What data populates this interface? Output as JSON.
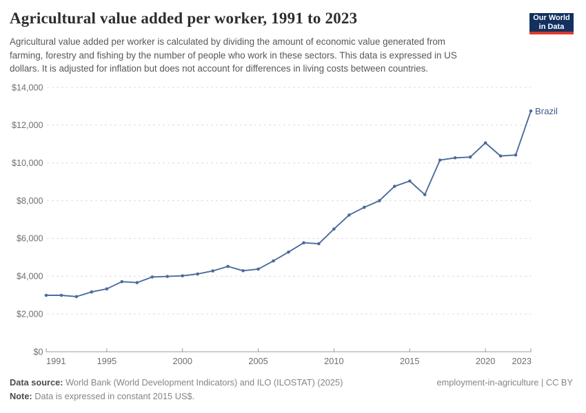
{
  "header": {
    "title": "Agricultural value added per worker, 1991 to 2023",
    "subtitle": "Agricultural value added per worker is calculated by dividing the amount of economic value generated from\nfarming, forestry and fishing by the number of people who work in these sectors. This data is expressed in US\ndollars. It is adjusted for inflation but does not account for differences in living costs between countries.",
    "logo_line1": "Our World",
    "logo_line2": "in Data",
    "logo_bg_color": "#12315f",
    "logo_stripe_color": "#dc3a2d"
  },
  "chart_data": {
    "type": "line",
    "title": "Agricultural value added per worker, 1991 to 2023",
    "xlabel": "",
    "ylabel": "",
    "xlim": [
      1991,
      2023
    ],
    "ylim": [
      0,
      14000
    ],
    "grid": "horizontal-dashed",
    "legend_position": "end-of-line-label",
    "x_tick_years": [
      1991,
      1995,
      2000,
      2005,
      2010,
      2015,
      2020,
      2023
    ],
    "x_tick_labels": [
      "1991",
      "1995",
      "2000",
      "2005",
      "2010",
      "2015",
      "2020",
      "2023"
    ],
    "y_tick_values": [
      0,
      2000,
      4000,
      6000,
      8000,
      10000,
      12000,
      14000
    ],
    "y_tick_labels": [
      "$0",
      "$2,000",
      "$4,000",
      "$6,000",
      "$8,000",
      "$10,000",
      "$12,000",
      "$14,000"
    ],
    "series": [
      {
        "name": "Brazil",
        "color": "#4c6a9c",
        "label_color": "#3d5a8f",
        "x": [
          1991,
          1992,
          1993,
          1994,
          1995,
          1996,
          1997,
          1998,
          1999,
          2000,
          2001,
          2002,
          2003,
          2004,
          2005,
          2006,
          2007,
          2008,
          2009,
          2010,
          2011,
          2012,
          2013,
          2014,
          2015,
          2016,
          2017,
          2018,
          2019,
          2020,
          2021,
          2022,
          2023
        ],
        "values": [
          2990,
          2990,
          2920,
          3170,
          3330,
          3710,
          3660,
          3960,
          3990,
          4020,
          4120,
          4280,
          4520,
          4290,
          4380,
          4810,
          5280,
          5770,
          5720,
          6500,
          7240,
          7650,
          8000,
          8760,
          9040,
          8320,
          10150,
          10270,
          10310,
          11060,
          10370,
          10420,
          12750
        ]
      }
    ],
    "colors": {
      "grid_line": "#dcdcdc",
      "axis_line": "#999999",
      "tick_label": "#6e6e6e"
    }
  },
  "footer": {
    "data_source_label": "Data source:",
    "data_source_text": " World Bank (World Development Indicators) and ILO (ILOSTAT) (2025)",
    "note_label": "Note:",
    "note_text": " Data is expressed in constant 2015 US$.",
    "license": "employment-in-agriculture | CC BY"
  }
}
